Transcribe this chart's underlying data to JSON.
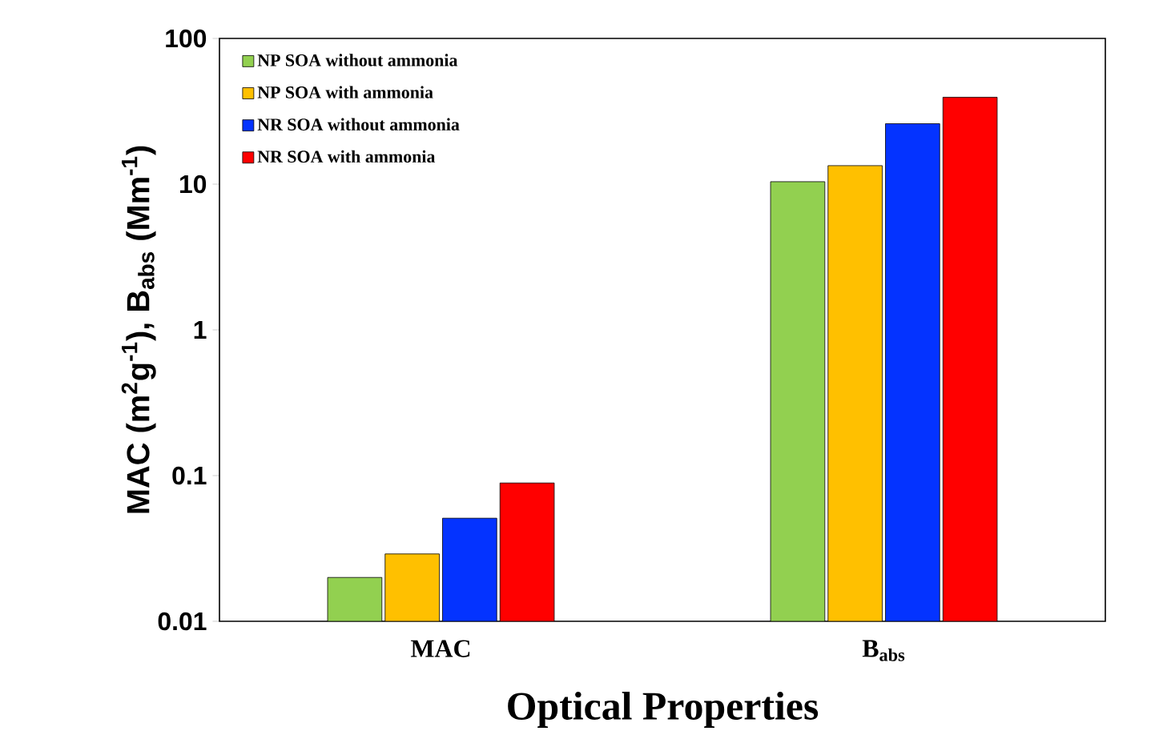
{
  "chart_data": {
    "type": "bar",
    "xlabel": "Optical Properties",
    "ylabel": "MAC (m$^{2}$g$^{-1}$), B$_{abs}$ (Mm$^{-1}$)",
    "categories": [
      "MAC",
      "B$_{abs}$"
    ],
    "series": [
      {
        "name": "NP SOA without ammonia",
        "color": "#92d050",
        "values": [
          0.02,
          10.4
        ]
      },
      {
        "name": "NP SOA with ammonia",
        "color": "#ffc000",
        "values": [
          0.029,
          13.4
        ]
      },
      {
        "name": "NR SOA without ammonia",
        "color": "#0433ff",
        "values": [
          0.051,
          26
        ]
      },
      {
        "name": "NR SOA with ammonia",
        "color": "#ff0000",
        "values": [
          0.089,
          39.5
        ]
      }
    ],
    "log": true,
    "ylim": [
      0.01,
      100
    ],
    "yticks": [
      0.01,
      0.1,
      1,
      10,
      100
    ],
    "legend": "top left"
  }
}
